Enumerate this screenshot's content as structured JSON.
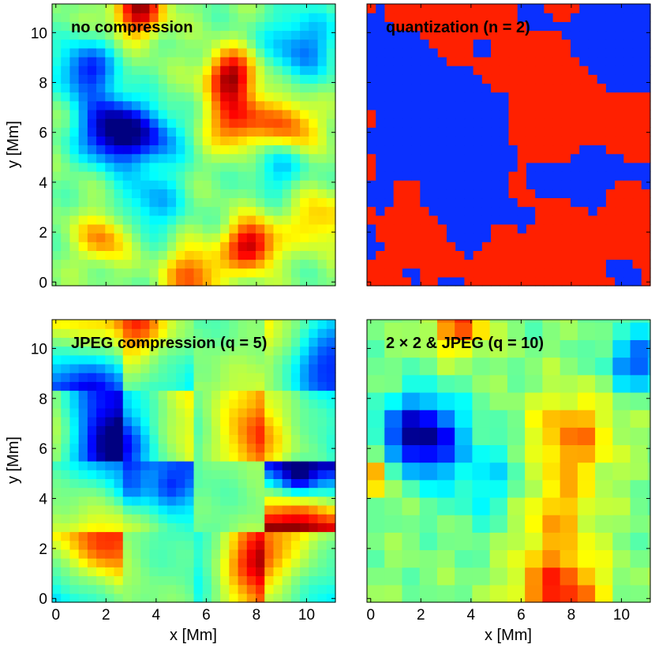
{
  "chart_data": {
    "type": "heatmap",
    "colormap": "jet",
    "grid_size": [
      32,
      32
    ],
    "xlim": [
      -0.15,
      11.15
    ],
    "ylim": [
      -0.15,
      11.15
    ],
    "grid": false,
    "x_ticks": [
      "0",
      "2",
      "4",
      "6",
      "8",
      "10"
    ],
    "y_ticks": [
      "0",
      "2",
      "4",
      "6",
      "8",
      "10"
    ],
    "xlabel": "x [Mm]",
    "ylabel": "y [Mm]",
    "panels": [
      {
        "title": "no compression",
        "features": [
          {
            "x": 2.3,
            "y": 6.1,
            "sigma": 0.9,
            "amp": -0.55
          },
          {
            "x": 1.2,
            "y": 8.5,
            "sigma": 0.8,
            "amp": -0.35
          },
          {
            "x": 4.0,
            "y": 5.8,
            "sigma": 0.8,
            "amp": -0.25
          },
          {
            "x": 9.8,
            "y": 9.5,
            "sigma": 1.0,
            "amp": -0.25
          },
          {
            "x": 3.8,
            "y": 3.2,
            "sigma": 0.9,
            "amp": -0.2
          },
          {
            "x": 8.9,
            "y": 4.8,
            "sigma": 0.8,
            "amp": -0.2
          },
          {
            "x": 7.0,
            "y": 8.3,
            "sigma": 0.7,
            "amp": 0.45
          },
          {
            "x": 7.2,
            "y": 6.5,
            "sigma": 0.8,
            "amp": 0.35
          },
          {
            "x": 7.8,
            "y": 1.5,
            "sigma": 0.7,
            "amp": 0.45
          },
          {
            "x": 3.3,
            "y": 10.9,
            "sigma": 0.7,
            "amp": 0.45
          },
          {
            "x": 5.5,
            "y": 0.3,
            "sigma": 0.8,
            "amp": 0.3
          },
          {
            "x": 9.3,
            "y": 6.2,
            "sigma": 0.8,
            "amp": 0.3
          },
          {
            "x": 1.9,
            "y": 1.8,
            "sigma": 0.7,
            "amp": 0.25
          },
          {
            "x": 10.5,
            "y": 2.5,
            "sigma": 0.8,
            "amp": 0.2
          }
        ]
      },
      {
        "title": "quantization (n = 2)",
        "levels": 2,
        "features": [
          {
            "x": 2.3,
            "y": 6.1,
            "sigma": 0.9,
            "amp": -0.55
          },
          {
            "x": 1.2,
            "y": 8.5,
            "sigma": 0.8,
            "amp": -0.35
          },
          {
            "x": 4.0,
            "y": 5.8,
            "sigma": 0.8,
            "amp": -0.25
          },
          {
            "x": 9.8,
            "y": 9.5,
            "sigma": 1.0,
            "amp": -0.25
          },
          {
            "x": 3.8,
            "y": 3.2,
            "sigma": 0.9,
            "amp": -0.2
          },
          {
            "x": 8.9,
            "y": 4.8,
            "sigma": 0.8,
            "amp": -0.2
          },
          {
            "x": 7.0,
            "y": 8.3,
            "sigma": 0.7,
            "amp": 0.45
          },
          {
            "x": 7.2,
            "y": 6.5,
            "sigma": 0.8,
            "amp": 0.35
          },
          {
            "x": 7.8,
            "y": 1.5,
            "sigma": 0.7,
            "amp": 0.45
          },
          {
            "x": 3.3,
            "y": 10.9,
            "sigma": 0.7,
            "amp": 0.45
          },
          {
            "x": 5.5,
            "y": 0.3,
            "sigma": 0.8,
            "amp": 0.3
          },
          {
            "x": 9.3,
            "y": 6.2,
            "sigma": 0.8,
            "amp": 0.3
          },
          {
            "x": 1.9,
            "y": 1.8,
            "sigma": 0.7,
            "amp": 0.25
          },
          {
            "x": 10.5,
            "y": 2.5,
            "sigma": 0.8,
            "amp": 0.2
          }
        ]
      },
      {
        "title": "JPEG compression (q = 5)",
        "block_mm": 2.8,
        "features": [
          {
            "x": 2.3,
            "y": 6.1,
            "sigma": 0.9,
            "amp": -0.6
          },
          {
            "x": 1.2,
            "y": 8.5,
            "sigma": 0.8,
            "amp": -0.35
          },
          {
            "x": 3.0,
            "y": 4.4,
            "sigma": 0.5,
            "amp": -0.3
          },
          {
            "x": 4.5,
            "y": 4.4,
            "sigma": 0.5,
            "amp": -0.35
          },
          {
            "x": 9.7,
            "y": 4.8,
            "sigma": 0.5,
            "amp": -0.55
          },
          {
            "x": 10.6,
            "y": 9.5,
            "sigma": 0.8,
            "amp": -0.3
          },
          {
            "x": 3.3,
            "y": 10.9,
            "sigma": 0.7,
            "amp": 0.45
          },
          {
            "x": 8.0,
            "y": 1.5,
            "sigma": 0.7,
            "amp": 0.45
          },
          {
            "x": 8.0,
            "y": 6.5,
            "sigma": 0.9,
            "amp": 0.3
          },
          {
            "x": 1.9,
            "y": 2.0,
            "sigma": 0.7,
            "amp": 0.3
          },
          {
            "x": 9.5,
            "y": 3.5,
            "sigma": 0.9,
            "amp": 0.2
          }
        ]
      },
      {
        "title": "2 × 2 & JPEG (q = 10)",
        "cell_mm": 0.7,
        "features": [
          {
            "x": 2.0,
            "y": 6.5,
            "sigma": 1.1,
            "amp": -0.5
          },
          {
            "x": 10.6,
            "y": 9.5,
            "sigma": 0.8,
            "amp": -0.3
          },
          {
            "x": 5.0,
            "y": 4.6,
            "sigma": 1.3,
            "amp": -0.15
          },
          {
            "x": 7.5,
            "y": 0.2,
            "sigma": 1.2,
            "amp": 0.35
          },
          {
            "x": 3.5,
            "y": 11.0,
            "sigma": 0.8,
            "amp": 0.3
          },
          {
            "x": 8.0,
            "y": 6.5,
            "sigma": 1.2,
            "amp": 0.25
          },
          {
            "x": 7.2,
            "y": 3.5,
            "sigma": 1.2,
            "amp": 0.2
          },
          {
            "x": 0.2,
            "y": 5.0,
            "sigma": 0.6,
            "amp": 0.25
          }
        ]
      }
    ]
  }
}
